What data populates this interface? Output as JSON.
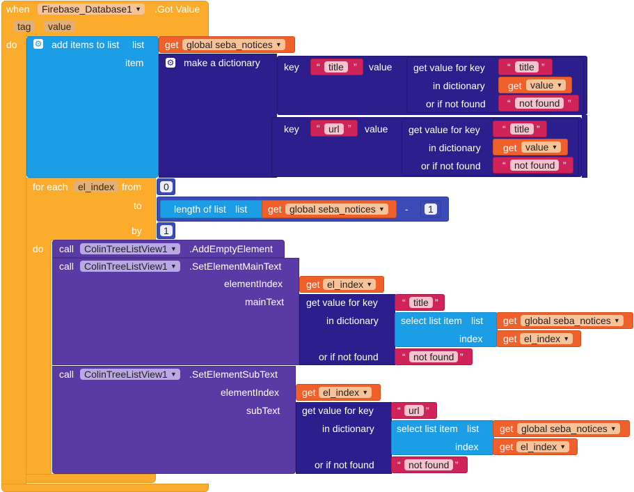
{
  "event": {
    "when": "when",
    "component": "Firebase_Database1",
    "event_name": ".Got Value",
    "params": [
      "tag",
      "value"
    ],
    "do": "do"
  },
  "add_items": {
    "label": "add items to list",
    "list_label": "list",
    "item_label": "item"
  },
  "get_label": "get",
  "global_var": "global seba_notices",
  "make_dict": "make a dictionary",
  "dict_rows": [
    {
      "key_label": "key",
      "key": "title",
      "value_label": "value"
    },
    {
      "key_label": "key",
      "key": "url",
      "value_label": "value"
    }
  ],
  "gvfk": {
    "label": "get value for key",
    "in_dict": "in dictionary",
    "not_found_label": "or if not found",
    "not_found": "not found"
  },
  "var_value": "value",
  "for_each": {
    "label": "for each",
    "var": "el_index",
    "from": "from",
    "from_val": "0",
    "to": "to",
    "by": "by",
    "by_val": "1",
    "do": "do"
  },
  "length_of_list": {
    "label": "length of list",
    "list": "list"
  },
  "minus": "-",
  "minus_val": "1",
  "calls": [
    {
      "call": "call",
      "component": "ColinTreeListView1",
      "method": ".AddEmptyElement"
    },
    {
      "call": "call",
      "component": "ColinTreeListView1",
      "method": ".SetElementMainText",
      "arg1": "elementIndex",
      "arg2": "mainText",
      "key": "title"
    },
    {
      "call": "call",
      "component": "ColinTreeListView1",
      "method": ".SetElementSubText",
      "arg1": "elementIndex",
      "arg2": "subText",
      "key": "url"
    }
  ],
  "select_item": {
    "label": "select list item",
    "list": "list",
    "index": "index"
  },
  "el_index": "el_index",
  "colors": {
    "event": "#fcac2c",
    "list": "#1b9ee6",
    "dict": "#2d1e8e",
    "math": "#3c4ab6",
    "component": "#5a3aa5",
    "get": "#f0602a",
    "text": "#cf2359"
  }
}
